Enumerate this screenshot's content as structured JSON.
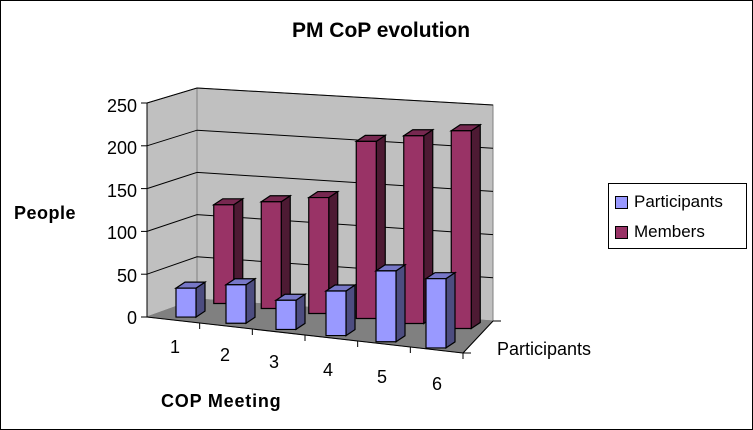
{
  "chart_data": {
    "type": "bar",
    "subtype": "3d-column",
    "title": "PM CoP evolution",
    "xlabel": "COP Meeting",
    "ylabel": "People",
    "depth_axis_label": "Participants",
    "categories": [
      "1",
      "2",
      "3",
      "4",
      "5",
      "6"
    ],
    "series": [
      {
        "name": "Participants",
        "color": "#9999ff",
        "values": [
          33,
          43,
          32,
          48,
          75,
          72
        ]
      },
      {
        "name": "Members",
        "color": "#993366",
        "values": [
          115,
          122,
          130,
          195,
          203,
          210
        ]
      }
    ],
    "yticks": [
      "0",
      "50",
      "100",
      "150",
      "200",
      "250"
    ],
    "ylim": [
      0,
      250
    ],
    "grid": true,
    "legend_position": "right",
    "wall_color": "#c0c0c0",
    "floor_color": "#808080"
  }
}
